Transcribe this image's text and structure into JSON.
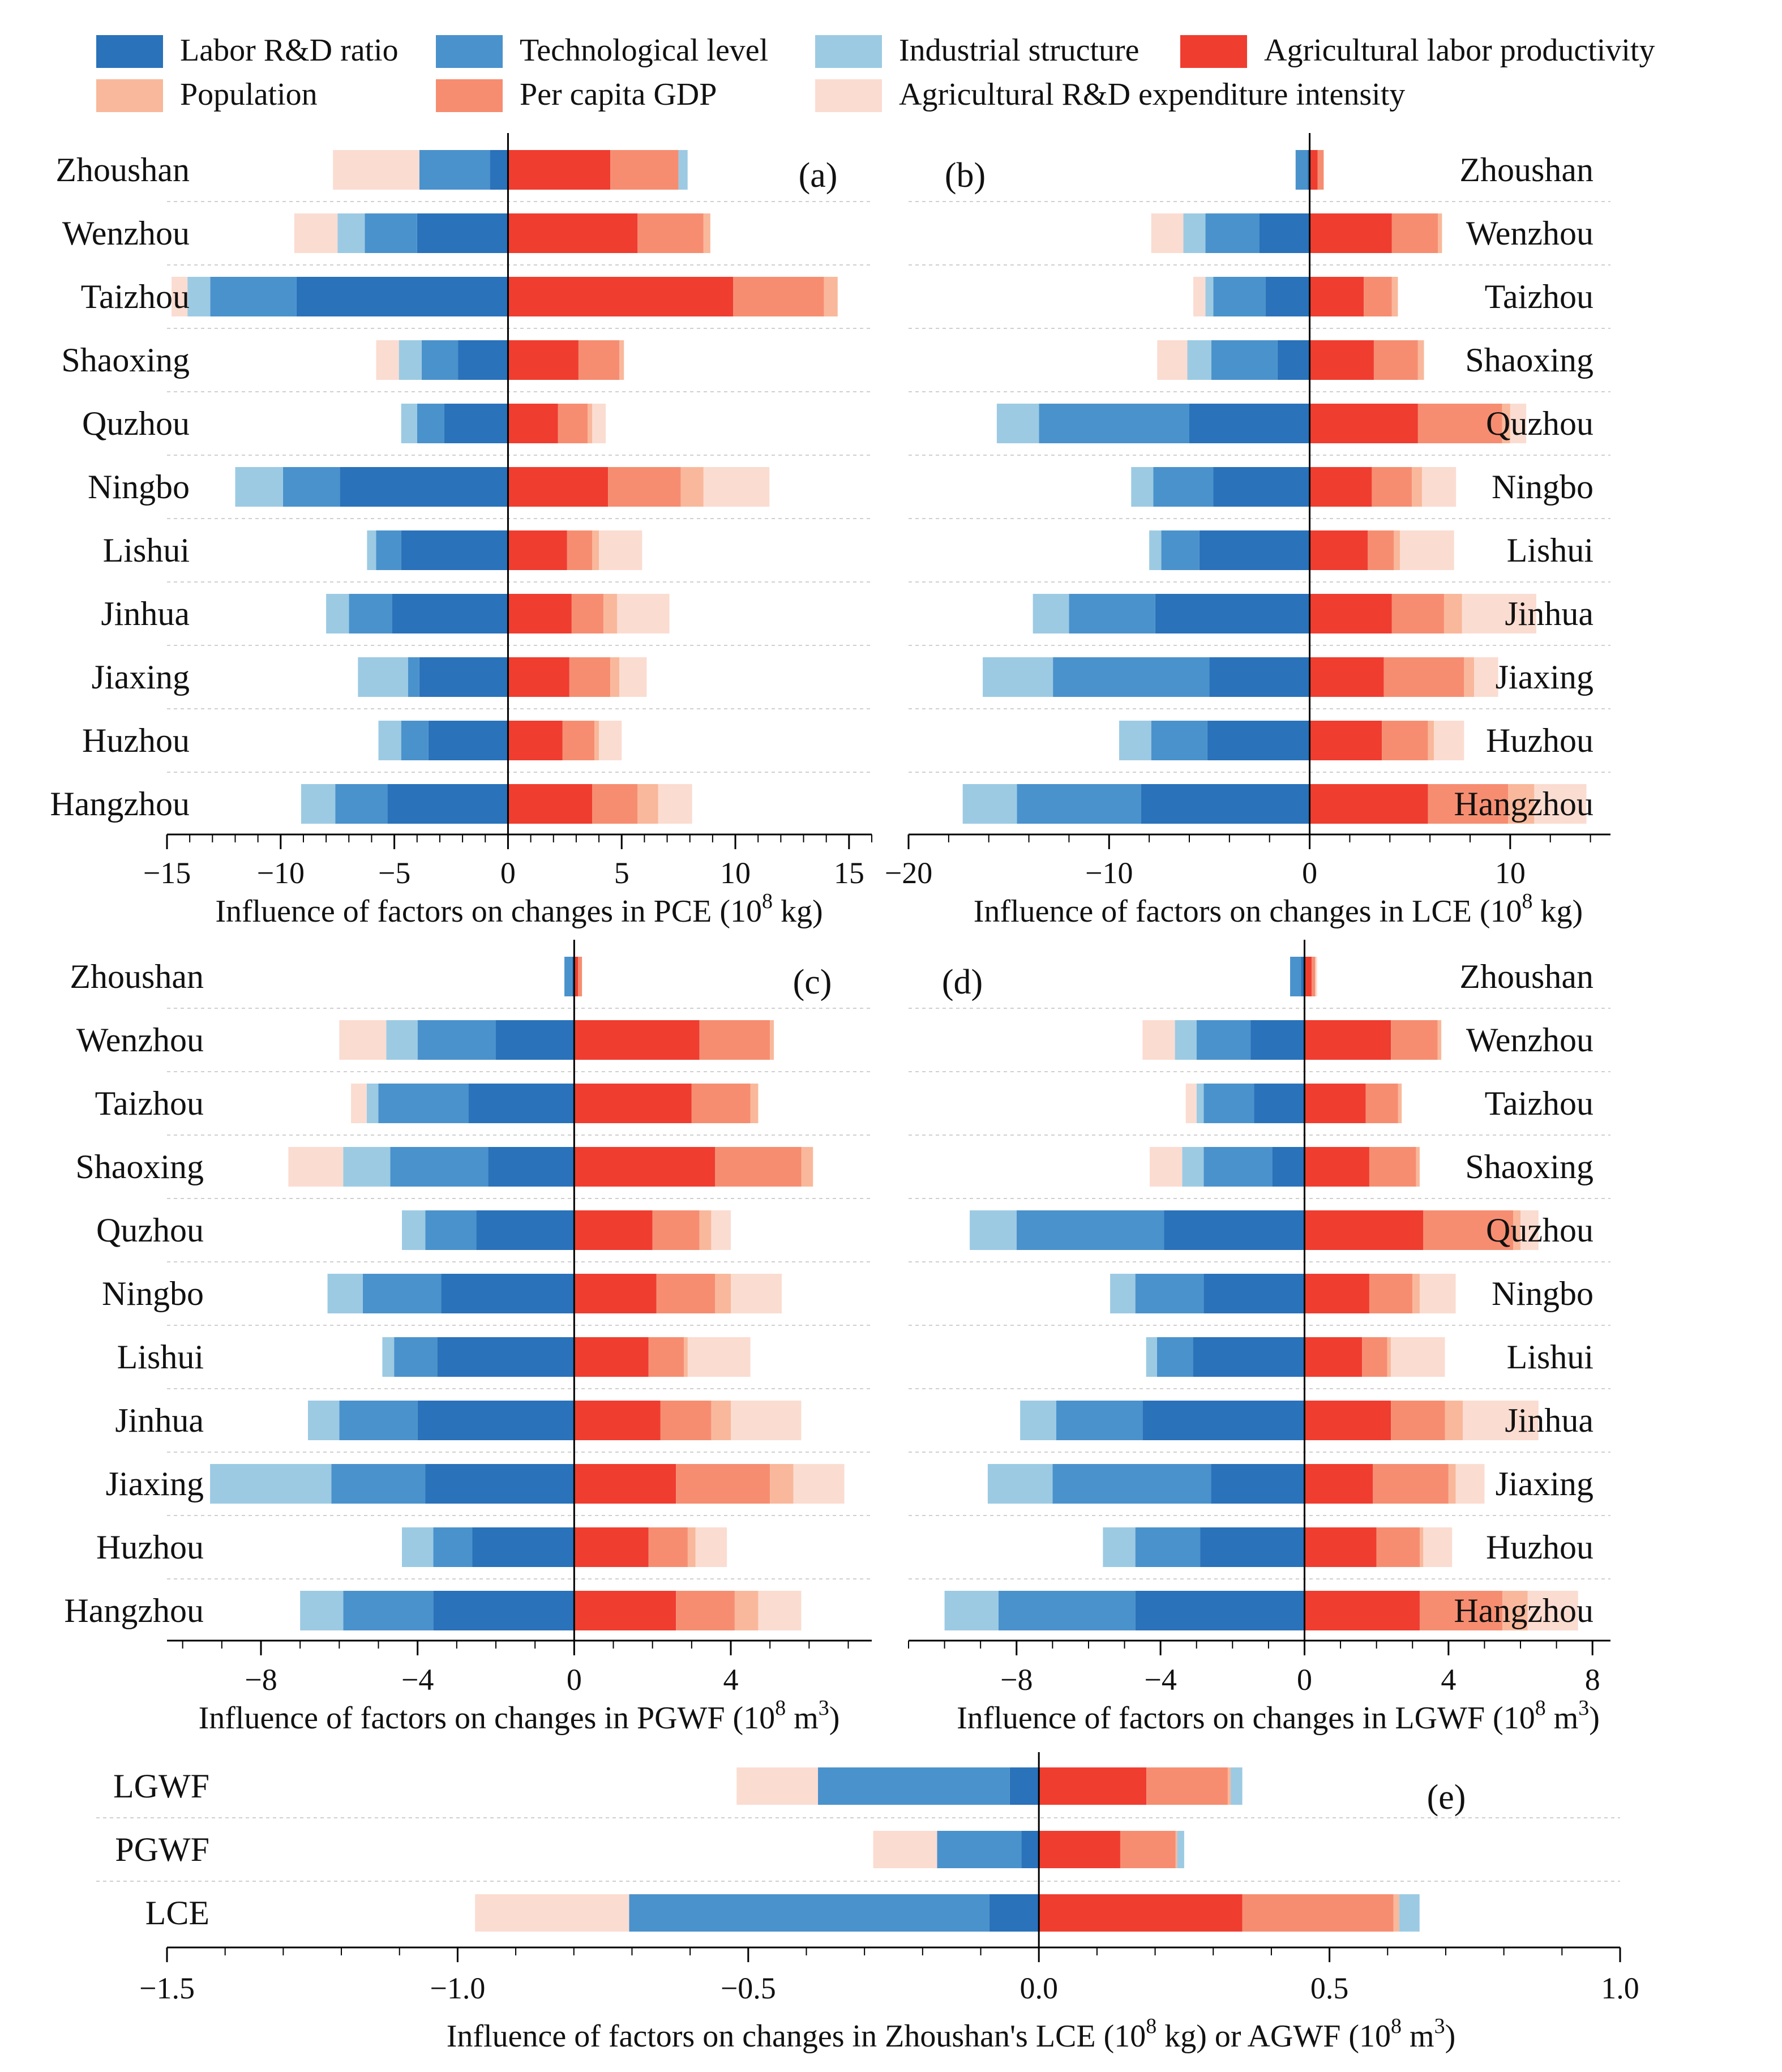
{
  "legend": [
    {
      "key": "labor_rd_ratio",
      "label": "Labor R&D ratio",
      "color": "#2a72ba"
    },
    {
      "key": "tech_level",
      "label": "Technological level",
      "color": "#4a92cc"
    },
    {
      "key": "industrial_structure",
      "label": "Industrial structure",
      "color": "#9ccae3"
    },
    {
      "key": "ag_labor_productivity",
      "label": "Agricultural labor productivity",
      "color": "#ef3d30"
    },
    {
      "key": "population",
      "label": "Population",
      "color": "#f9b89b"
    },
    {
      "key": "per_capita_gdp",
      "label": "Per capita GDP",
      "color": "#f68d71"
    },
    {
      "key": "ag_rd_intensity",
      "label": "Agricultural R&D expenditure intensity",
      "color": "#fbdcd1"
    }
  ],
  "chart_data": [
    {
      "type": "bar",
      "panel": "(a)",
      "orientation": "horizontal",
      "stacked": "diverging",
      "xlabel": "Influence of factors on changes in PCE (10^8 kg)",
      "xlim": [
        -15,
        16
      ],
      "xticks": [
        -15,
        -10,
        -5,
        0,
        5,
        10,
        15
      ],
      "cities": [
        "Zhoushan",
        "Wenzhou",
        "Taizhou",
        "Shaoxing",
        "Quzhou",
        "Ningbo",
        "Lishui",
        "Jinhua",
        "Jiaxing",
        "Huzhou",
        "Hangzhou"
      ],
      "negative_series": [
        {
          "name": "Labor R&D ratio",
          "values": [
            -0.8,
            -4.0,
            -9.3,
            -2.2,
            -2.8,
            -7.4,
            -4.7,
            -5.1,
            -3.9,
            -3.5,
            -5.3
          ]
        },
        {
          "name": "Technological level",
          "values": [
            -3.1,
            -2.3,
            -3.8,
            -1.6,
            -1.2,
            -2.5,
            -1.1,
            -1.9,
            -0.5,
            -1.2,
            -2.3
          ]
        },
        {
          "name": "Industrial structure",
          "values": [
            0,
            -1.2,
            -1.0,
            -1.0,
            -0.7,
            -2.1,
            -0.4,
            -1.0,
            -2.2,
            -1.0,
            -1.5
          ]
        },
        {
          "name": "Agricultural R&D expenditure intensity",
          "values": [
            -3.8,
            -1.9,
            -0.7,
            -1.0,
            0,
            0,
            0,
            0,
            0,
            0,
            0
          ]
        }
      ],
      "positive_series": [
        {
          "name": "Agricultural labor productivity",
          "values": [
            4.5,
            5.7,
            9.9,
            3.1,
            2.2,
            4.4,
            2.6,
            2.8,
            2.7,
            2.4,
            3.7
          ]
        },
        {
          "name": "Per capita GDP",
          "values": [
            3.0,
            2.9,
            4.0,
            1.8,
            1.3,
            3.2,
            1.1,
            1.4,
            1.8,
            1.4,
            2.0
          ]
        },
        {
          "name": "Population",
          "values": [
            0,
            0.3,
            0.6,
            0.2,
            0.2,
            1.0,
            0.3,
            0.6,
            0.4,
            0.2,
            0.9
          ]
        },
        {
          "name": "Industrial structure",
          "values": [
            0.4,
            0,
            0,
            0,
            0,
            0,
            0,
            0,
            0,
            0,
            0
          ]
        },
        {
          "name": "Agricultural R&D expenditure intensity",
          "values": [
            0,
            0,
            0,
            0,
            0.6,
            2.9,
            1.9,
            2.3,
            1.2,
            1.0,
            1.5
          ]
        }
      ]
    },
    {
      "type": "bar",
      "panel": "(b)",
      "orientation": "horizontal",
      "stacked": "diverging",
      "xlabel": "Influence of factors on changes in LCE (10^8 kg)",
      "xlim": [
        -20,
        15
      ],
      "xticks": [
        -20,
        -10,
        0,
        10
      ],
      "cities": [
        "Zhoushan",
        "Wenzhou",
        "Taizhou",
        "Shaoxing",
        "Quzhou",
        "Ningbo",
        "Lishui",
        "Jinhua",
        "Jiaxing",
        "Huzhou",
        "Hangzhou"
      ],
      "negative_series": [
        {
          "name": "Labor R&D ratio",
          "values": [
            -0.1,
            -2.5,
            -2.2,
            -1.6,
            -6.0,
            -4.8,
            -5.5,
            -7.7,
            -5.0,
            -5.1,
            -8.4
          ]
        },
        {
          "name": "Technological level",
          "values": [
            -0.6,
            -2.7,
            -2.6,
            -3.3,
            -7.5,
            -3.0,
            -1.9,
            -4.3,
            -7.8,
            -2.8,
            -6.2
          ]
        },
        {
          "name": "Industrial structure",
          "values": [
            0,
            -1.1,
            -0.4,
            -1.2,
            -2.1,
            -1.1,
            -0.6,
            -1.8,
            -3.5,
            -1.6,
            -2.7
          ]
        },
        {
          "name": "Agricultural R&D expenditure intensity",
          "values": [
            0,
            -1.6,
            -0.6,
            -1.5,
            0,
            0,
            0,
            0,
            0,
            0,
            0
          ]
        }
      ],
      "positive_series": [
        {
          "name": "Agricultural labor productivity",
          "values": [
            0.4,
            4.1,
            2.7,
            3.2,
            5.4,
            3.1,
            2.9,
            4.1,
            3.7,
            3.6,
            5.9
          ]
        },
        {
          "name": "Per capita GDP",
          "values": [
            0.3,
            2.3,
            1.4,
            2.2,
            4.2,
            2.0,
            1.3,
            2.6,
            4.0,
            2.3,
            4.0
          ]
        },
        {
          "name": "Population",
          "values": [
            0,
            0.2,
            0.3,
            0.3,
            0.4,
            0.5,
            0.3,
            0.9,
            0.5,
            0.3,
            1.3
          ]
        },
        {
          "name": "Agricultural R&D expenditure intensity",
          "values": [
            0,
            0,
            0,
            0,
            0.8,
            1.7,
            2.7,
            3.7,
            1.2,
            1.5,
            2.6
          ]
        }
      ]
    },
    {
      "type": "bar",
      "panel": "(c)",
      "orientation": "horizontal",
      "stacked": "diverging",
      "xlabel": "Influence of factors on changes in PGWF (10^8 m^3)",
      "xlim": [
        -10.4,
        7.6
      ],
      "xticks": [
        -8,
        -4,
        0,
        4
      ],
      "cities": [
        "Zhoushan",
        "Wenzhou",
        "Taizhou",
        "Shaoxing",
        "Quzhou",
        "Ningbo",
        "Lishui",
        "Jinhua",
        "Jiaxing",
        "Huzhou",
        "Hangzhou"
      ],
      "negative_series": [
        {
          "name": "Labor R&D ratio",
          "values": [
            -0.05,
            -2.0,
            -2.7,
            -2.2,
            -2.5,
            -3.4,
            -3.5,
            -4.0,
            -3.8,
            -2.6,
            -3.6
          ]
        },
        {
          "name": "Technological level",
          "values": [
            -0.2,
            -2.0,
            -2.3,
            -2.5,
            -1.3,
            -2.0,
            -1.1,
            -2.0,
            -2.4,
            -1.0,
            -2.3
          ]
        },
        {
          "name": "Industrial structure",
          "values": [
            0,
            -0.8,
            -0.3,
            -1.2,
            -0.6,
            -0.9,
            -0.3,
            -0.8,
            -3.1,
            -0.8,
            -1.1
          ]
        },
        {
          "name": "Agricultural R&D expenditure intensity",
          "values": [
            0,
            -1.2,
            -0.4,
            -1.4,
            0,
            0,
            0,
            0,
            0,
            0,
            0
          ]
        }
      ],
      "positive_series": [
        {
          "name": "Agricultural labor productivity",
          "values": [
            0.1,
            3.2,
            3.0,
            3.6,
            2.0,
            2.1,
            1.9,
            2.2,
            2.6,
            1.9,
            2.6
          ]
        },
        {
          "name": "Per capita GDP",
          "values": [
            0.1,
            1.8,
            1.5,
            2.2,
            1.2,
            1.5,
            0.9,
            1.3,
            2.4,
            1.0,
            1.5
          ]
        },
        {
          "name": "Population",
          "values": [
            0,
            0.1,
            0.2,
            0.3,
            0.3,
            0.4,
            0.1,
            0.5,
            0.6,
            0.2,
            0.6
          ]
        },
        {
          "name": "Agricultural R&D expenditure intensity",
          "values": [
            0,
            0,
            0,
            0,
            0.5,
            1.3,
            1.6,
            1.8,
            1.3,
            0.8,
            1.1
          ]
        }
      ]
    },
    {
      "type": "bar",
      "panel": "(d)",
      "orientation": "horizontal",
      "stacked": "diverging",
      "xlabel": "Influence of factors on changes in LGWF (10^8 m^3)",
      "xlim": [
        -11,
        8.5
      ],
      "xticks": [
        -8,
        -4,
        0,
        4,
        8
      ],
      "cities": [
        "Zhoushan",
        "Wenzhou",
        "Taizhou",
        "Shaoxing",
        "Quzhou",
        "Ningbo",
        "Lishui",
        "Jinhua",
        "Jiaxing",
        "Huzhou",
        "Hangzhou"
      ],
      "negative_series": [
        {
          "name": "Labor R&D ratio",
          "values": [
            -0.1,
            -1.5,
            -1.4,
            -0.9,
            -3.9,
            -2.8,
            -3.1,
            -4.5,
            -2.6,
            -2.9,
            -4.7
          ]
        },
        {
          "name": "Technological level",
          "values": [
            -0.3,
            -1.5,
            -1.4,
            -1.9,
            -4.1,
            -1.9,
            -1.0,
            -2.4,
            -4.4,
            -1.8,
            -3.8
          ]
        },
        {
          "name": "Industrial structure",
          "values": [
            0,
            -0.6,
            -0.2,
            -0.6,
            -1.3,
            -0.7,
            -0.3,
            -1.0,
            -1.8,
            -0.9,
            -1.5
          ]
        },
        {
          "name": "Agricultural R&D expenditure intensity",
          "values": [
            0,
            -0.9,
            -0.3,
            -0.9,
            0,
            0,
            0,
            0,
            0,
            0,
            0
          ]
        }
      ],
      "positive_series": [
        {
          "name": "Agricultural labor productivity",
          "values": [
            0.2,
            2.4,
            1.7,
            1.8,
            3.3,
            1.8,
            1.6,
            2.4,
            1.9,
            2.0,
            3.2
          ]
        },
        {
          "name": "Per capita GDP",
          "values": [
            0.1,
            1.3,
            0.9,
            1.3,
            2.5,
            1.2,
            0.7,
            1.5,
            2.1,
            1.2,
            2.3
          ]
        },
        {
          "name": "Population",
          "values": [
            0,
            0.1,
            0.1,
            0.1,
            0.2,
            0.2,
            0.1,
            0.5,
            0.2,
            0.1,
            0.7
          ]
        },
        {
          "name": "Agricultural R&D expenditure intensity",
          "values": [
            0.05,
            0,
            0,
            0,
            0.5,
            1.0,
            1.5,
            2.1,
            0.8,
            0.8,
            1.4
          ]
        }
      ]
    },
    {
      "type": "bar",
      "panel": "(e)",
      "orientation": "horizontal",
      "stacked": "diverging",
      "xlabel": "Influence of factors on changes in Zhoushan's LCE (10^8 kg) or AGWF (10^8 m^3)",
      "xlim": [
        -1.5,
        1.0
      ],
      "xticks": [
        -1.5,
        -1.0,
        -0.5,
        0.0,
        0.5,
        1.0
      ],
      "cities": [
        "LGWF",
        "PGWF",
        "LCE"
      ],
      "negative_series": [
        {
          "name": "Labor R&D ratio",
          "values": [
            -0.05,
            -0.03,
            -0.085
          ]
        },
        {
          "name": "Technological level",
          "values": [
            -0.33,
            -0.145,
            -0.62
          ]
        },
        {
          "name": "Agricultural R&D expenditure intensity",
          "values": [
            -0.14,
            -0.11,
            -0.265
          ]
        }
      ],
      "positive_series": [
        {
          "name": "Agricultural labor productivity",
          "values": [
            0.185,
            0.14,
            0.35
          ]
        },
        {
          "name": "Per capita GDP",
          "values": [
            0.14,
            0.095,
            0.26
          ]
        },
        {
          "name": "Population",
          "values": [
            0.005,
            0.003,
            0.01
          ]
        },
        {
          "name": "Industrial structure",
          "values": [
            0.02,
            0.012,
            0.035
          ]
        }
      ]
    }
  ],
  "figure_text": {
    "panel_a": {
      "letter": "(a)",
      "xlabel_main": "Influence of factors on changes in PCE (10",
      "exp": "8",
      "xlabel_tail": " kg)"
    },
    "panel_b": {
      "letter": "(b)",
      "xlabel_main": "Influence of factors on changes in LCE (10",
      "exp": "8",
      "xlabel_tail": " kg)"
    },
    "panel_c": {
      "letter": "(c)",
      "xlabel_main": "Influence of factors on changes in PGWF (10",
      "exp": "8",
      "xlabel_mid": " m",
      "exp2": "3",
      "xlabel_tail": ")"
    },
    "panel_d": {
      "letter": "(d)",
      "xlabel_main": "Influence of factors on changes in LGWF (10",
      "exp": "8",
      "xlabel_mid": " m",
      "exp2": "3",
      "xlabel_tail": ")"
    },
    "panel_e": {
      "letter": "(e)",
      "xlabel_main": "Influence of factors on changes in Zhoushan's LCE (10",
      "exp": "8",
      "xlabel_mid": " kg) or AGWF (10",
      "exp2": "8",
      "xlabel_mid2": " m",
      "exp3": "3",
      "xlabel_tail": ")"
    }
  },
  "tick_labels": {
    "a": [
      "−15",
      "−10",
      "−5",
      "0",
      "5",
      "10",
      "15"
    ],
    "b": [
      "−20",
      "−10",
      "0",
      "10"
    ],
    "c": [
      "−8",
      "−4",
      "0",
      "4"
    ],
    "d": [
      "−8",
      "−4",
      "0",
      "4",
      "8"
    ],
    "e": [
      "−1.5",
      "−1.0",
      "−0.5",
      "0.0",
      "0.5",
      "1.0"
    ]
  }
}
